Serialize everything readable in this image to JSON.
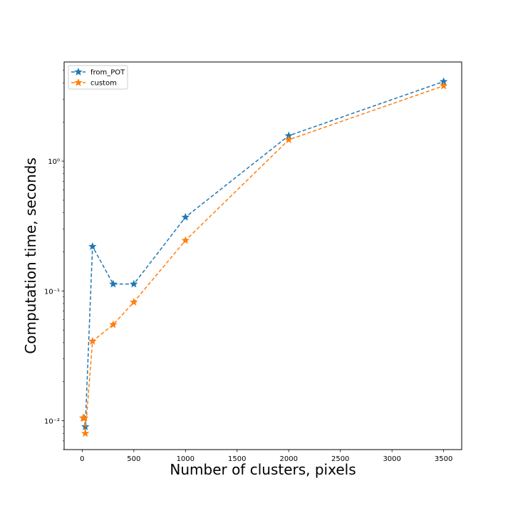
{
  "chart_data": {
    "type": "line",
    "title": "",
    "xlabel": "Number of clusters, pixels",
    "ylabel": "Computation time, seconds",
    "x_scale": "linear",
    "y_scale": "log",
    "xlim": [
      -175,
      3675
    ],
    "ylim": [
      0.006,
      5.8
    ],
    "x_ticks": [
      0,
      500,
      1000,
      1500,
      2000,
      2500,
      3000,
      3500
    ],
    "x_tick_labels": [
      "0",
      "500",
      "1000",
      "1500",
      "2000",
      "2500",
      "3000",
      "3500"
    ],
    "y_ticks": [
      0.01,
      0.1,
      1
    ],
    "y_tick_labels": [
      "10⁻²",
      "10⁻¹",
      "10⁰"
    ],
    "grid": false,
    "legend_position": "upper-left",
    "series": [
      {
        "name": "from_POT",
        "color": "#1f77b4",
        "line_style": "dashed",
        "marker": "star",
        "x": [
          10,
          20,
          30,
          100,
          300,
          500,
          1000,
          2000,
          3500
        ],
        "y": [
          0.0105,
          0.0105,
          0.009,
          0.22,
          0.113,
          0.113,
          0.37,
          1.57,
          4.1
        ]
      },
      {
        "name": "custom",
        "color": "#ff7f0e",
        "line_style": "dashed",
        "marker": "star",
        "x": [
          10,
          20,
          30,
          100,
          300,
          500,
          1000,
          2000,
          3500
        ],
        "y": [
          0.0105,
          0.0105,
          0.008,
          0.041,
          0.055,
          0.082,
          0.245,
          1.46,
          3.8
        ]
      }
    ]
  }
}
